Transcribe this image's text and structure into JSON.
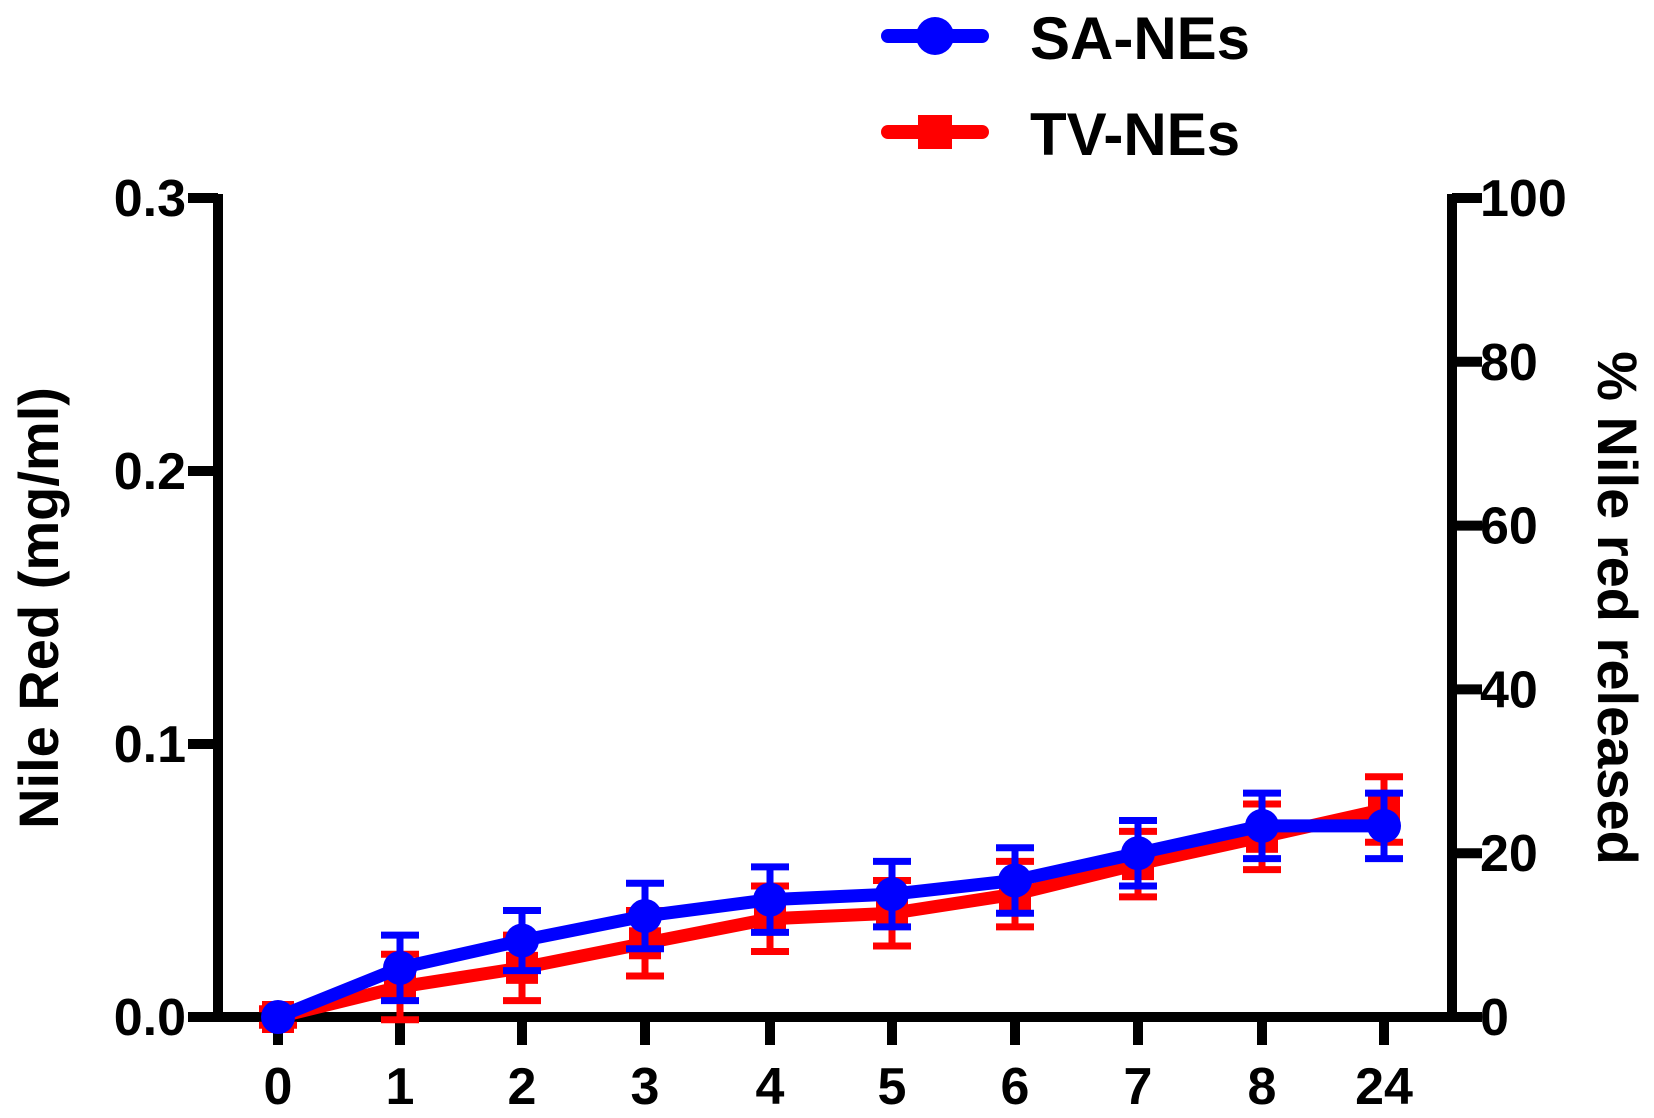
{
  "chart_data": {
    "type": "line",
    "categories": [
      "0",
      "1",
      "2",
      "3",
      "4",
      "5",
      "6",
      "7",
      "8",
      "24"
    ],
    "ylabel_left": "Nile Red (mg/ml)",
    "ylabel_right": "% Nile red released",
    "ylim_left": [
      0,
      0.3
    ],
    "ylim_right": [
      0,
      100
    ],
    "yticks_left": [
      "0.0",
      "0.1",
      "0.2",
      "0.3"
    ],
    "yticks_right": [
      "0",
      "20",
      "40",
      "60",
      "80",
      "100"
    ],
    "legend_position": "top-center",
    "grid": false,
    "series": [
      {
        "name": "SA-NEs",
        "color": "#0000ff",
        "marker": "circle",
        "values": [
          0.0,
          0.018,
          0.028,
          0.037,
          0.043,
          0.045,
          0.05,
          0.06,
          0.07,
          0.07
        ],
        "errors": [
          0.0,
          0.012,
          0.011,
          0.012,
          0.012,
          0.012,
          0.012,
          0.012,
          0.012,
          0.012
        ]
      },
      {
        "name": "TV-NEs",
        "color": "#ff0000",
        "marker": "square",
        "values": [
          0.0,
          0.011,
          0.018,
          0.027,
          0.036,
          0.038,
          0.045,
          0.056,
          0.066,
          0.076
        ],
        "errors": [
          0.003,
          0.012,
          0.012,
          0.012,
          0.012,
          0.012,
          0.012,
          0.012,
          0.012,
          0.012
        ]
      }
    ]
  }
}
